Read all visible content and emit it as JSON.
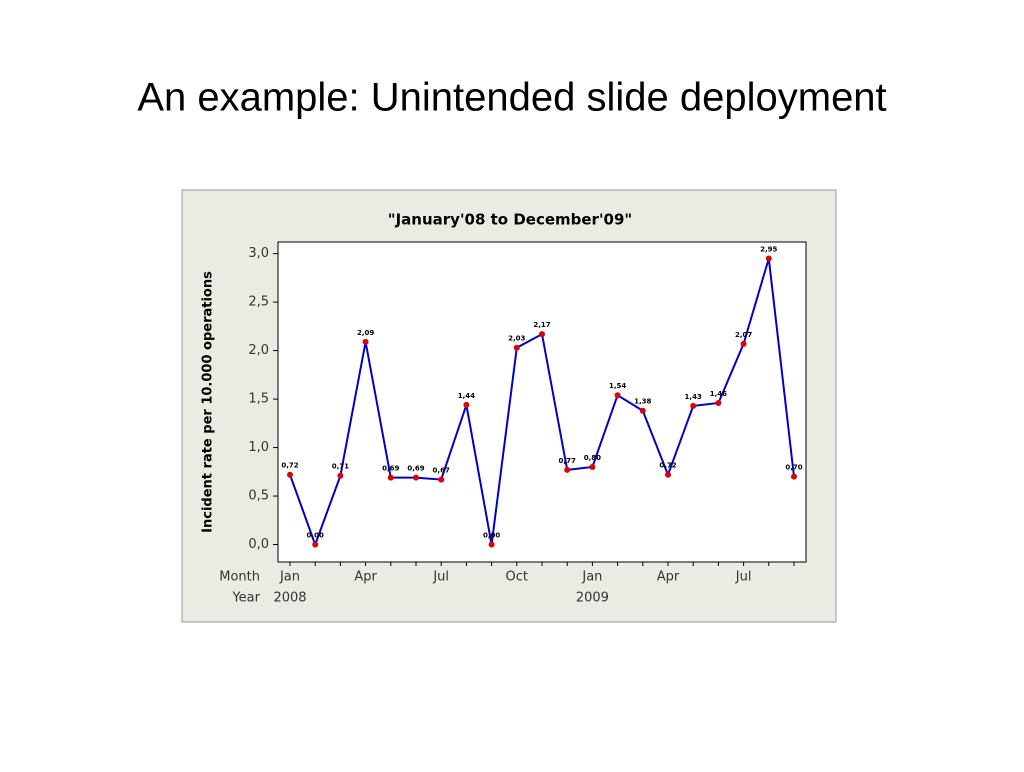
{
  "slide_title": "An example: Unintended slide deployment",
  "chart_data": {
    "type": "line",
    "title": "\"January'08 to December'09\"",
    "y_label": "Incident rate per 10.000 operations",
    "x_row_labels": [
      "Month",
      "Year"
    ],
    "categories": [
      "Jan",
      null,
      null,
      "Apr",
      null,
      null,
      "Jul",
      null,
      null,
      "Oct",
      null,
      null,
      "Jan",
      null,
      null,
      "Apr",
      null,
      null,
      "Jul",
      null,
      null
    ],
    "years": [
      "2008",
      null,
      null,
      null,
      null,
      null,
      null,
      null,
      null,
      null,
      null,
      null,
      "2009",
      null,
      null,
      null,
      null,
      null,
      null,
      null,
      null
    ],
    "values": [
      0.72,
      0.0,
      0.71,
      2.09,
      0.69,
      0.69,
      0.67,
      1.44,
      0.0,
      2.03,
      2.17,
      0.77,
      0.8,
      1.54,
      1.38,
      0.72,
      1.43,
      1.46,
      2.07,
      2.95,
      0.7
    ],
    "value_labels": [
      "0,72",
      "0,00",
      "0,71",
      "2,09",
      "0,69",
      "0,69",
      "0,67",
      "1,44",
      "0,00",
      "2,03",
      "2,17",
      "0,77",
      "0,80",
      "1,54",
      "1,38",
      "0,72",
      "1,43",
      "1,46",
      "2,07",
      "2,95",
      "0,70"
    ],
    "color": "#0000cc",
    "marker_color": "#e00000",
    "ylim": [
      -0.18,
      3.12
    ],
    "yticks": [
      {
        "value": 0,
        "label": "0,0"
      },
      {
        "value": 0.5,
        "label": "0,5"
      },
      {
        "value": 1,
        "label": "1,0"
      },
      {
        "value": 1.5,
        "label": "1,5"
      },
      {
        "value": 2,
        "label": "2,0"
      },
      {
        "value": 2.5,
        "label": "2,5"
      },
      {
        "value": 3,
        "label": "3,0"
      }
    ]
  }
}
